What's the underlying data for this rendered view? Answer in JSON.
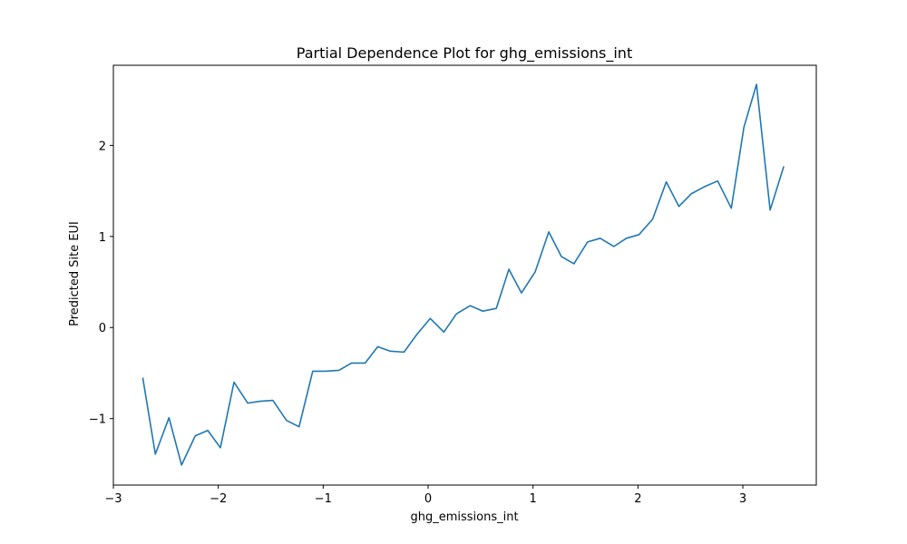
{
  "chart_data": {
    "type": "line",
    "title": "Partial Dependence Plot for ghg_emissions_int",
    "xlabel": "ghg_emissions_int",
    "ylabel": "Predicted Site EUI",
    "xlim": [
      -3.0,
      3.7
    ],
    "ylim": [
      -1.73,
      2.88
    ],
    "xticks": [
      {
        "value": -3,
        "label": "−3"
      },
      {
        "value": -2,
        "label": "−2"
      },
      {
        "value": -1,
        "label": "−1"
      },
      {
        "value": 0,
        "label": "0"
      },
      {
        "value": 1,
        "label": "1"
      },
      {
        "value": 2,
        "label": "2"
      },
      {
        "value": 3,
        "label": "3"
      }
    ],
    "yticks": [
      {
        "value": -1,
        "label": "−1"
      },
      {
        "value": 0,
        "label": "0"
      },
      {
        "value": 1,
        "label": "1"
      },
      {
        "value": 2,
        "label": "2"
      }
    ],
    "grid": false,
    "color": "#1f77b4",
    "series": [
      {
        "x": [
          -2.72,
          -2.6,
          -2.47,
          -2.35,
          -2.22,
          -2.1,
          -1.98,
          -1.85,
          -1.72,
          -1.6,
          -1.48,
          -1.35,
          -1.23,
          -1.1,
          -0.98,
          -0.85,
          -0.73,
          -0.6,
          -0.48,
          -0.36,
          -0.23,
          -0.11,
          0.02,
          0.15,
          0.27,
          0.4,
          0.52,
          0.65,
          0.77,
          0.89,
          1.02,
          1.15,
          1.27,
          1.39,
          1.52,
          1.64,
          1.77,
          1.89,
          2.01,
          2.14,
          2.27,
          2.39,
          2.51,
          2.64,
          2.76,
          2.89,
          3.01,
          3.13,
          3.26,
          3.39
        ],
        "y": [
          -0.55,
          -1.39,
          -0.99,
          -1.51,
          -1.19,
          -1.13,
          -1.32,
          -0.6,
          -0.83,
          -0.81,
          -0.8,
          -1.02,
          -1.09,
          -0.48,
          -0.48,
          -0.47,
          -0.39,
          -0.39,
          -0.21,
          -0.26,
          -0.27,
          -0.08,
          0.1,
          -0.05,
          0.15,
          0.24,
          0.18,
          0.21,
          0.64,
          0.38,
          0.61,
          1.05,
          0.78,
          0.7,
          0.94,
          0.98,
          0.89,
          0.98,
          1.02,
          1.19,
          1.6,
          1.33,
          1.47,
          1.55,
          1.61,
          1.31,
          2.2,
          2.67,
          1.29,
          1.77
        ]
      }
    ]
  }
}
